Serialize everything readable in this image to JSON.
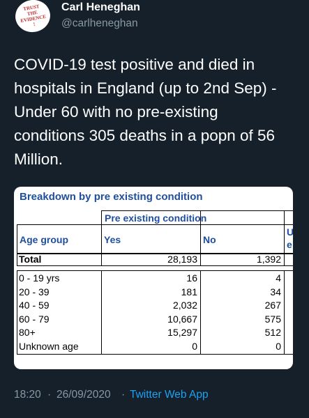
{
  "author": {
    "avatar_text": [
      "TRUST",
      "THE",
      "EVIDENCE",
      "!"
    ],
    "name": "Carl Heneghan",
    "handle": "@carlheneghan"
  },
  "tweet": {
    "lines": [
      "COVID-19 test positive and died in",
      "hospitals in England (up to 2nd Sep) -",
      "Under 60 with no pre-existing",
      "conditions 305 deaths in a popn of 56",
      "Million."
    ]
  },
  "table": {
    "title": "Breakdown by pre existing condition",
    "group_header": "Pre existing condition",
    "columns": [
      "Age group",
      "Yes",
      "No"
    ],
    "cut_header": [
      "U",
      "e"
    ],
    "total": [
      "Total",
      "28,193",
      "1,392"
    ],
    "rows": [
      [
        "0 - 19 yrs",
        "16",
        "4"
      ],
      [
        "20 - 39",
        "181",
        "34"
      ],
      [
        "40 - 59",
        "2,032",
        "267"
      ],
      [
        "60 - 79",
        "10,667",
        "575"
      ],
      [
        "80+",
        "15,297",
        "512"
      ],
      [
        "Unknown age",
        "0",
        "0"
      ]
    ]
  },
  "footer": {
    "time": "18:20",
    "separator": "·",
    "date": "26/09/2020",
    "source": "Twitter Web App"
  }
}
